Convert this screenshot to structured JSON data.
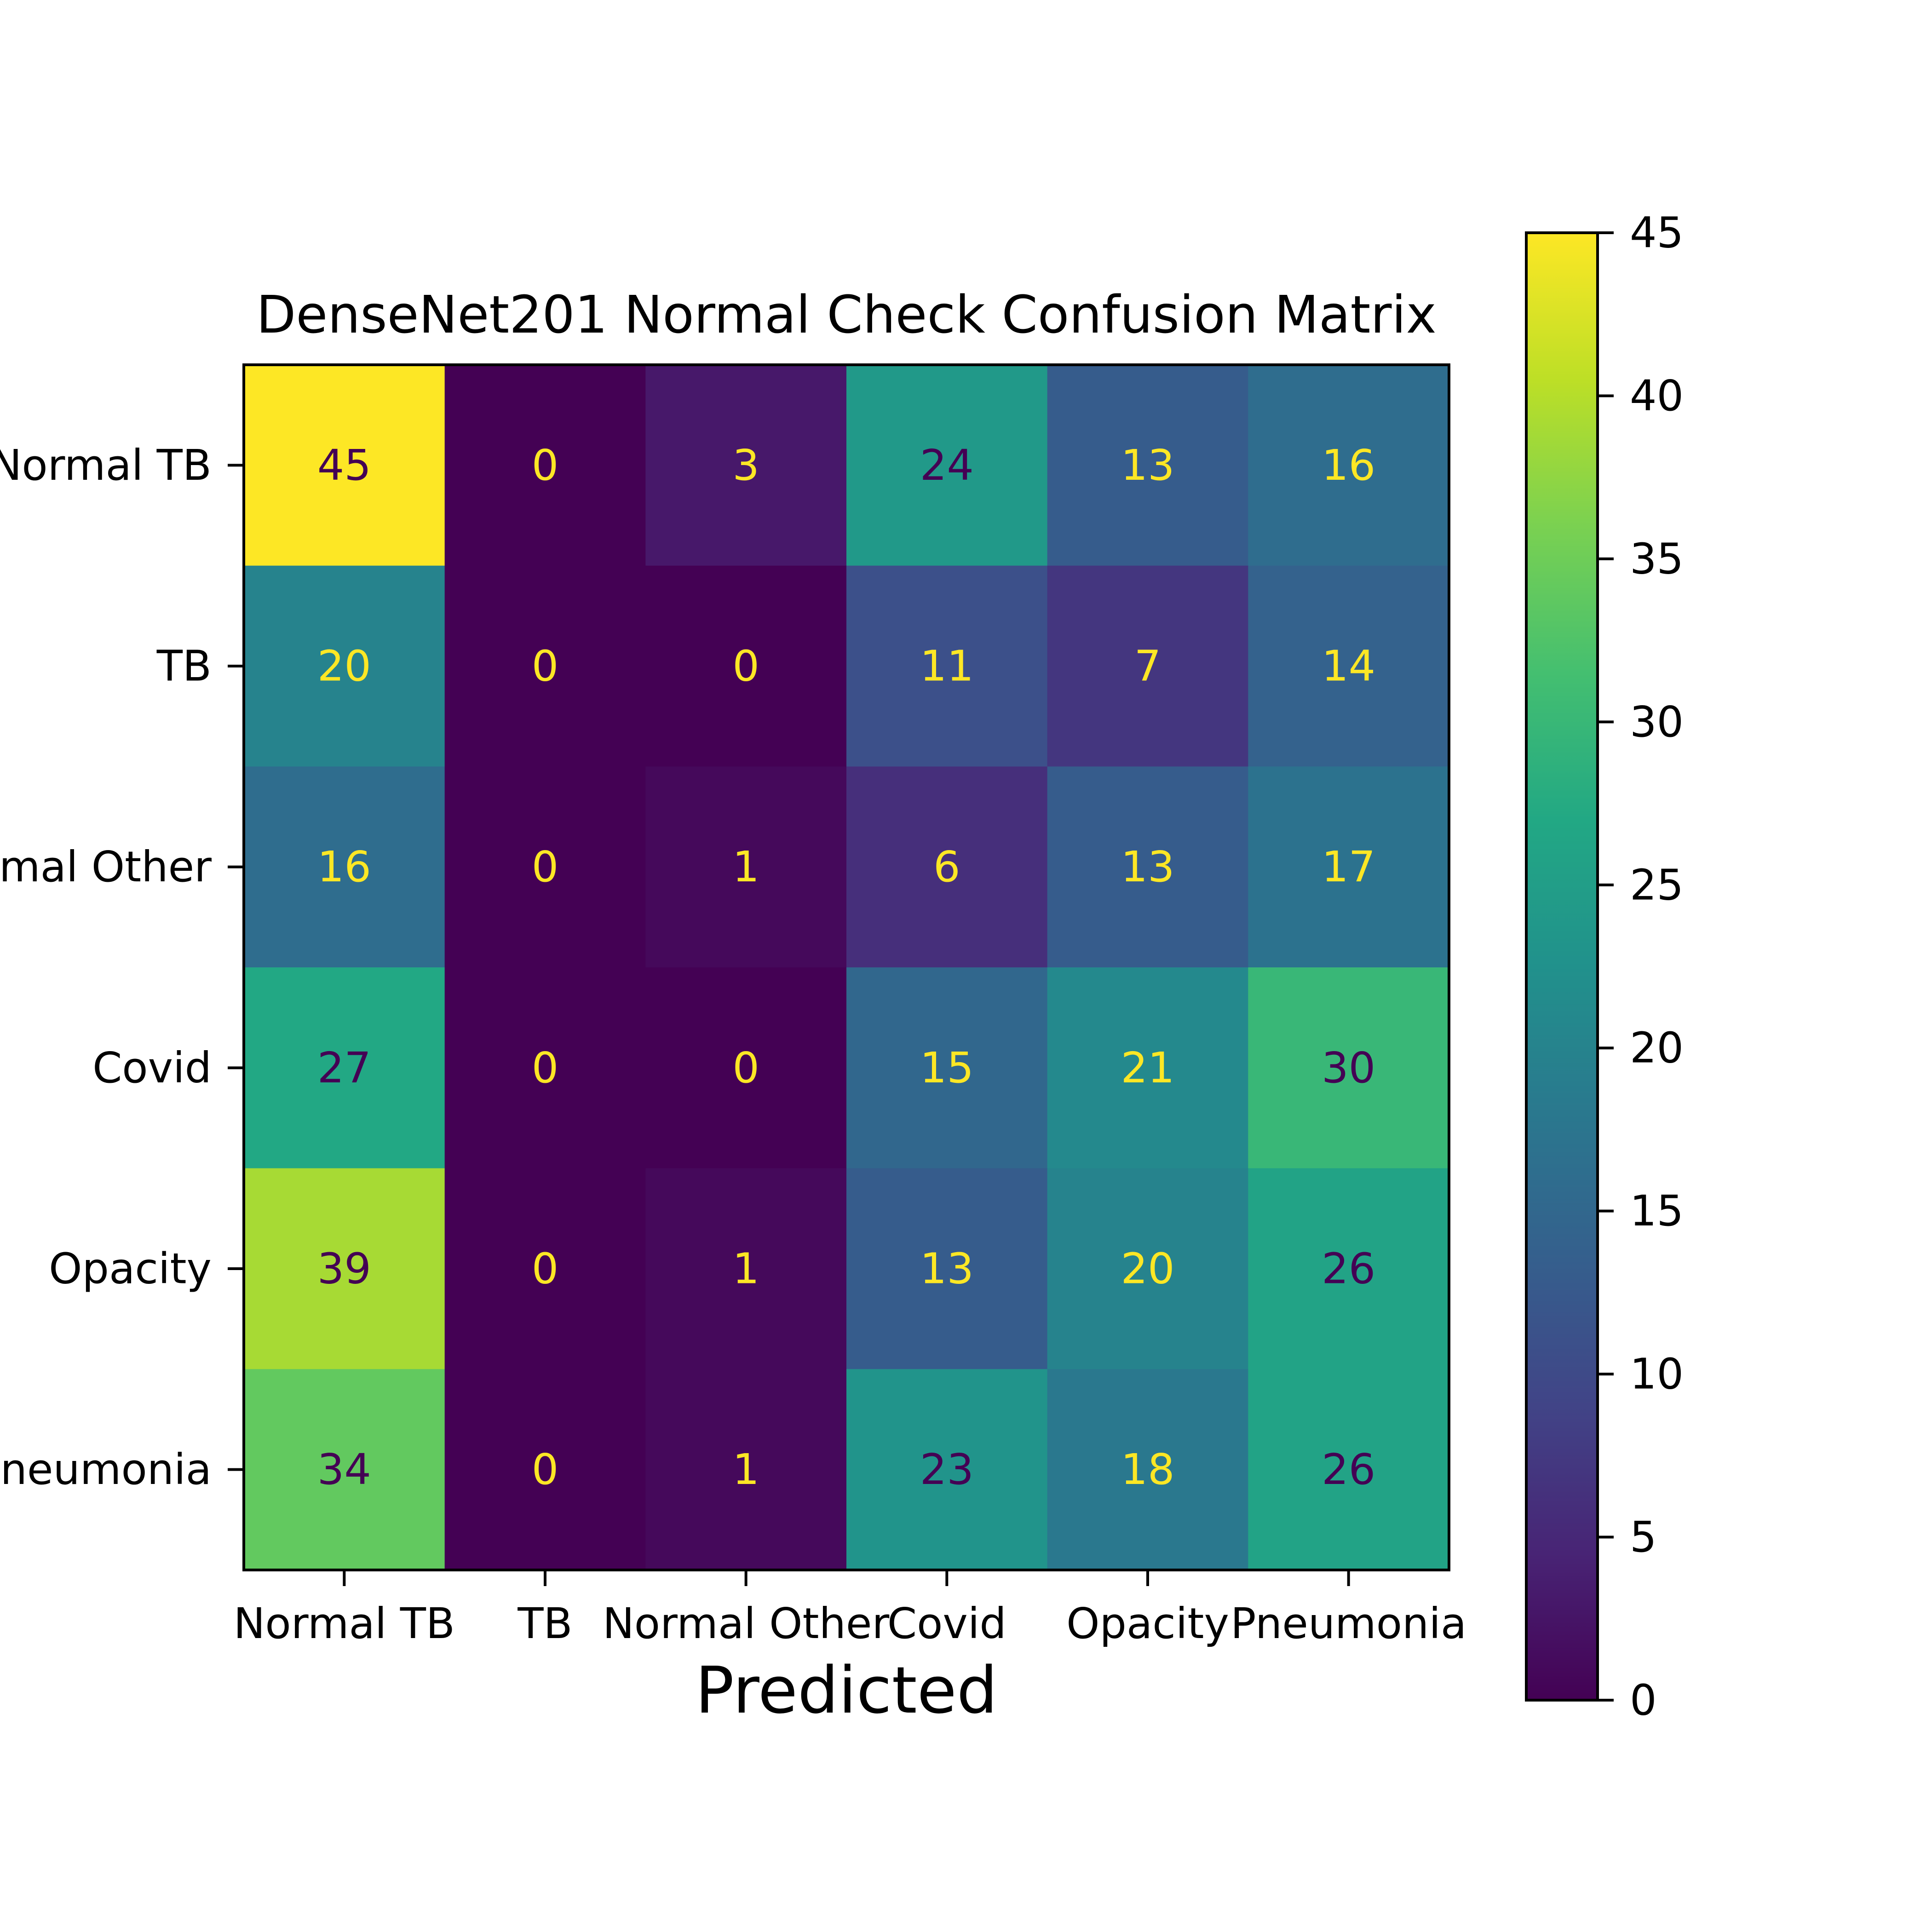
{
  "chart_data": {
    "type": "heatmap",
    "title": "DenseNet201 Normal Check Confusion Matrix",
    "xlabel": "Predicted",
    "ylabel": "",
    "x_categories": [
      "Normal TB",
      "TB",
      "Normal Other",
      "Covid",
      "Opacity",
      "Pneumonia"
    ],
    "y_categories": [
      "Normal TB",
      "TB",
      "Normal Other",
      "Covid",
      "Opacity",
      "Pneumonia"
    ],
    "values": [
      [
        45,
        0,
        3,
        24,
        13,
        16
      ],
      [
        20,
        0,
        0,
        11,
        7,
        14
      ],
      [
        16,
        0,
        1,
        6,
        13,
        17
      ],
      [
        27,
        0,
        0,
        15,
        21,
        30
      ],
      [
        39,
        0,
        1,
        13,
        20,
        26
      ],
      [
        34,
        0,
        1,
        23,
        18,
        26
      ]
    ],
    "colormap": "viridis",
    "value_range": [
      0,
      45
    ],
    "colorbar": {
      "ticks": [
        0,
        5,
        10,
        15,
        20,
        25,
        30,
        35,
        40,
        45
      ]
    },
    "text_colors": {
      "on_dark": "#fde725",
      "on_light": "#440154"
    },
    "grid": false
  }
}
